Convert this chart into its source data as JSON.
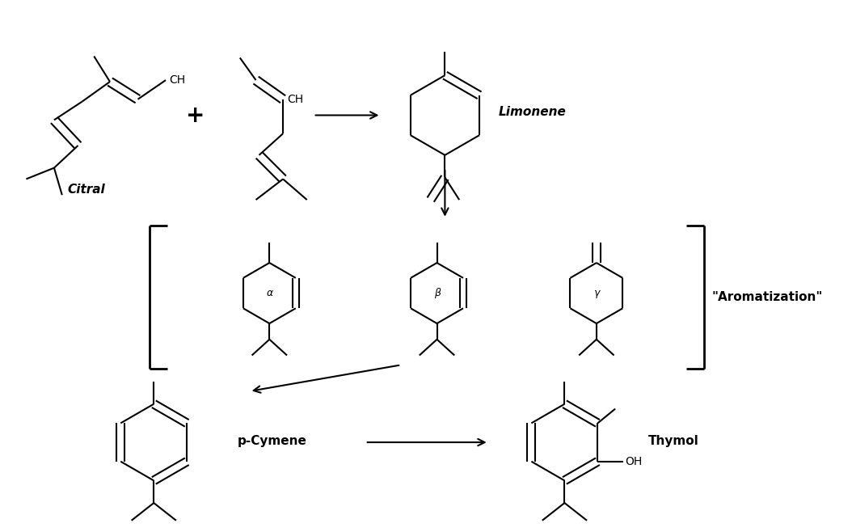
{
  "background": "#ffffff",
  "fig_width": 10.54,
  "fig_height": 6.58,
  "dpi": 100,
  "labels": {
    "citral": "Citral",
    "limonene": "Limonene",
    "aromatization": "\"Aromatization\"",
    "pcymene": "p-Cymene",
    "thymol": "Thymol",
    "alpha": "α",
    "beta": "β",
    "gamma": "γ",
    "CH": "CH",
    "OH": "OH"
  },
  "colors": {
    "line": "#000000",
    "text": "#000000",
    "background": "#ffffff"
  },
  "lw": 1.5
}
